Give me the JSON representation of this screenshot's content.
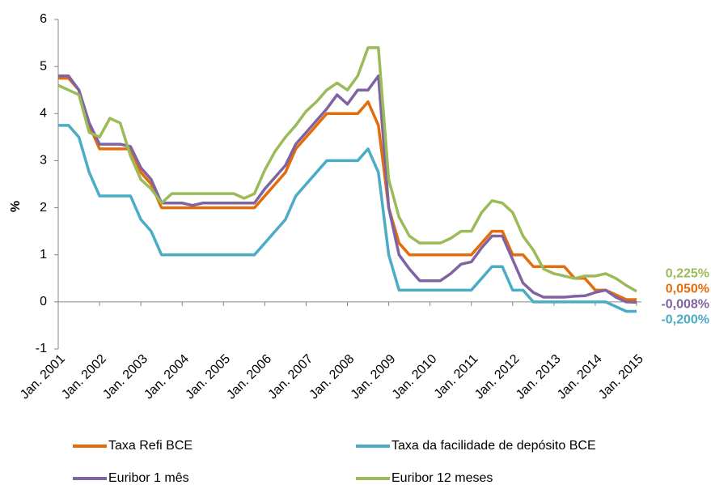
{
  "chart_data": {
    "type": "line",
    "y_label": "%",
    "categories": [
      "Jan. 2001",
      null,
      null,
      null,
      "Jan. 2002",
      null,
      null,
      null,
      "Jan. 2003",
      null,
      null,
      null,
      "Jan. 2004",
      null,
      null,
      null,
      "Jan. 2005",
      null,
      null,
      null,
      "Jan. 2006",
      null,
      null,
      null,
      "Jan. 2007",
      null,
      null,
      null,
      "Jan. 2008",
      null,
      null,
      null,
      "Jan. 2009",
      null,
      null,
      null,
      "Jan. 2010",
      null,
      null,
      null,
      "Jan. 2011",
      null,
      null,
      null,
      "Jan. 2012",
      null,
      null,
      null,
      "Jan. 2013",
      null,
      null,
      null,
      "Jan. 2014",
      null,
      null,
      null,
      "Jan. 2015"
    ],
    "ylim": [
      -1,
      6
    ],
    "yticks": [
      -1,
      0,
      1,
      2,
      3,
      4,
      5,
      6
    ],
    "grid": false,
    "legend": "bottom",
    "series": [
      {
        "name": "Taxa Refi BCE",
        "color": "#e46c0a",
        "end_label": "0,050%",
        "values": [
          4.75,
          4.75,
          4.5,
          3.75,
          3.25,
          3.25,
          3.25,
          3.25,
          2.75,
          2.5,
          2.0,
          2.0,
          2.0,
          2.0,
          2.0,
          2.0,
          2.0,
          2.0,
          2.0,
          2.0,
          2.25,
          2.5,
          2.75,
          3.25,
          3.5,
          3.75,
          4.0,
          4.0,
          4.0,
          4.0,
          4.25,
          3.75,
          2.0,
          1.25,
          1.0,
          1.0,
          1.0,
          1.0,
          1.0,
          1.0,
          1.0,
          1.25,
          1.5,
          1.5,
          1.0,
          1.0,
          0.75,
          0.75,
          0.75,
          0.75,
          0.5,
          0.5,
          0.25,
          0.25,
          0.15,
          0.05,
          0.05
        ]
      },
      {
        "name": "Taxa da facilidade de depósito BCE",
        "color": "#4bacc6",
        "end_label": "-0,200%",
        "values": [
          3.75,
          3.75,
          3.5,
          2.75,
          2.25,
          2.25,
          2.25,
          2.25,
          1.75,
          1.5,
          1.0,
          1.0,
          1.0,
          1.0,
          1.0,
          1.0,
          1.0,
          1.0,
          1.0,
          1.0,
          1.25,
          1.5,
          1.75,
          2.25,
          2.5,
          2.75,
          3.0,
          3.0,
          3.0,
          3.0,
          3.25,
          2.75,
          1.0,
          0.25,
          0.25,
          0.25,
          0.25,
          0.25,
          0.25,
          0.25,
          0.25,
          0.5,
          0.75,
          0.75,
          0.25,
          0.25,
          0,
          0,
          0,
          0,
          0,
          0,
          0,
          0,
          -0.1,
          -0.2,
          -0.2
        ]
      },
      {
        "name": "Euribor 1 mês",
        "color": "#8064a2",
        "end_label": "-0,008%",
        "values": [
          4.8,
          4.8,
          4.5,
          3.8,
          3.35,
          3.35,
          3.35,
          3.3,
          2.85,
          2.6,
          2.1,
          2.1,
          2.1,
          2.05,
          2.1,
          2.1,
          2.1,
          2.1,
          2.1,
          2.1,
          2.4,
          2.65,
          2.9,
          3.35,
          3.6,
          3.85,
          4.1,
          4.4,
          4.2,
          4.5,
          4.5,
          4.8,
          2.0,
          1.0,
          0.7,
          0.45,
          0.45,
          0.45,
          0.6,
          0.8,
          0.85,
          1.15,
          1.4,
          1.4,
          0.9,
          0.4,
          0.2,
          0.1,
          0.1,
          0.1,
          0.12,
          0.13,
          0.2,
          0.25,
          0.1,
          0.0,
          -0.008
        ]
      },
      {
        "name": "Euribor 12 meses",
        "color": "#9bbb59",
        "end_label": "0,225%",
        "values": [
          4.6,
          4.5,
          4.4,
          3.6,
          3.5,
          3.9,
          3.8,
          3.1,
          2.6,
          2.4,
          2.1,
          2.3,
          2.3,
          2.3,
          2.3,
          2.3,
          2.3,
          2.3,
          2.2,
          2.3,
          2.8,
          3.2,
          3.5,
          3.75,
          4.05,
          4.25,
          4.5,
          4.65,
          4.5,
          4.8,
          5.4,
          5.4,
          2.6,
          1.8,
          1.4,
          1.25,
          1.25,
          1.25,
          1.35,
          1.5,
          1.5,
          1.9,
          2.15,
          2.1,
          1.9,
          1.4,
          1.1,
          0.7,
          0.6,
          0.55,
          0.5,
          0.55,
          0.55,
          0.6,
          0.5,
          0.35,
          0.225
        ]
      }
    ]
  }
}
